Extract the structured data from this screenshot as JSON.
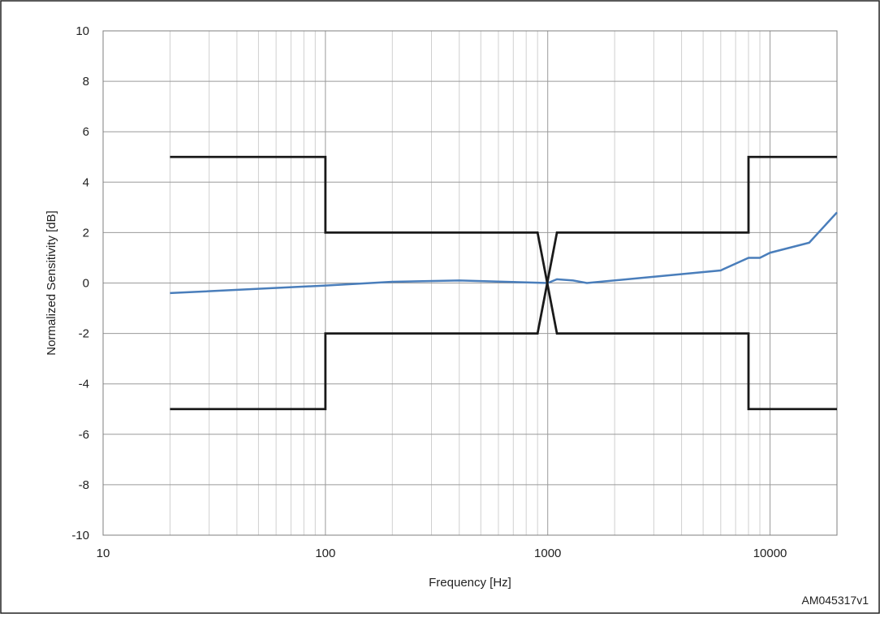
{
  "chart_data": {
    "type": "line",
    "title": "",
    "xlabel": "Frequency [Hz]",
    "ylabel": "Normalized Sensitivity [dB]",
    "x_scale": "log",
    "xlim": [
      10,
      20000
    ],
    "ylim": [
      -10,
      10
    ],
    "x_ticks": [
      10,
      100,
      1000,
      10000
    ],
    "x_tick_labels": [
      "10",
      "100",
      "1000",
      "10000"
    ],
    "y_ticks": [
      -10,
      -8,
      -6,
      -4,
      -2,
      0,
      2,
      4,
      6,
      8,
      10
    ],
    "y_tick_labels": [
      "-10",
      "-8",
      "-6",
      "-4",
      "-2",
      "0",
      "2",
      "4",
      "6",
      "8",
      "10"
    ],
    "grid": true,
    "legend": "none",
    "reference_label": "AM045317v1",
    "series": [
      {
        "color": "#4a7ebb",
        "x": [
          20,
          100,
          200,
          400,
          1000,
          1100,
          1300,
          1500,
          6000,
          8000,
          9000,
          10000,
          15000,
          20000
        ],
        "y": [
          -0.4,
          -0.1,
          0.05,
          0.1,
          0.0,
          0.15,
          0.1,
          0.0,
          0.5,
          1.0,
          1.0,
          1.2,
          1.6,
          2.8
        ]
      },
      {
        "color": "#1a1a1a",
        "x": [
          20,
          100,
          100,
          900,
          1100,
          8000,
          8000,
          20000
        ],
        "y": [
          5,
          5,
          2,
          2,
          -2,
          -2,
          -5,
          -5
        ]
      },
      {
        "color": "#1a1a1a",
        "x": [
          20,
          100,
          100,
          900,
          1100,
          8000,
          8000,
          20000
        ],
        "y": [
          -5,
          -5,
          -2,
          -2,
          2,
          2,
          5,
          5
        ]
      }
    ]
  }
}
